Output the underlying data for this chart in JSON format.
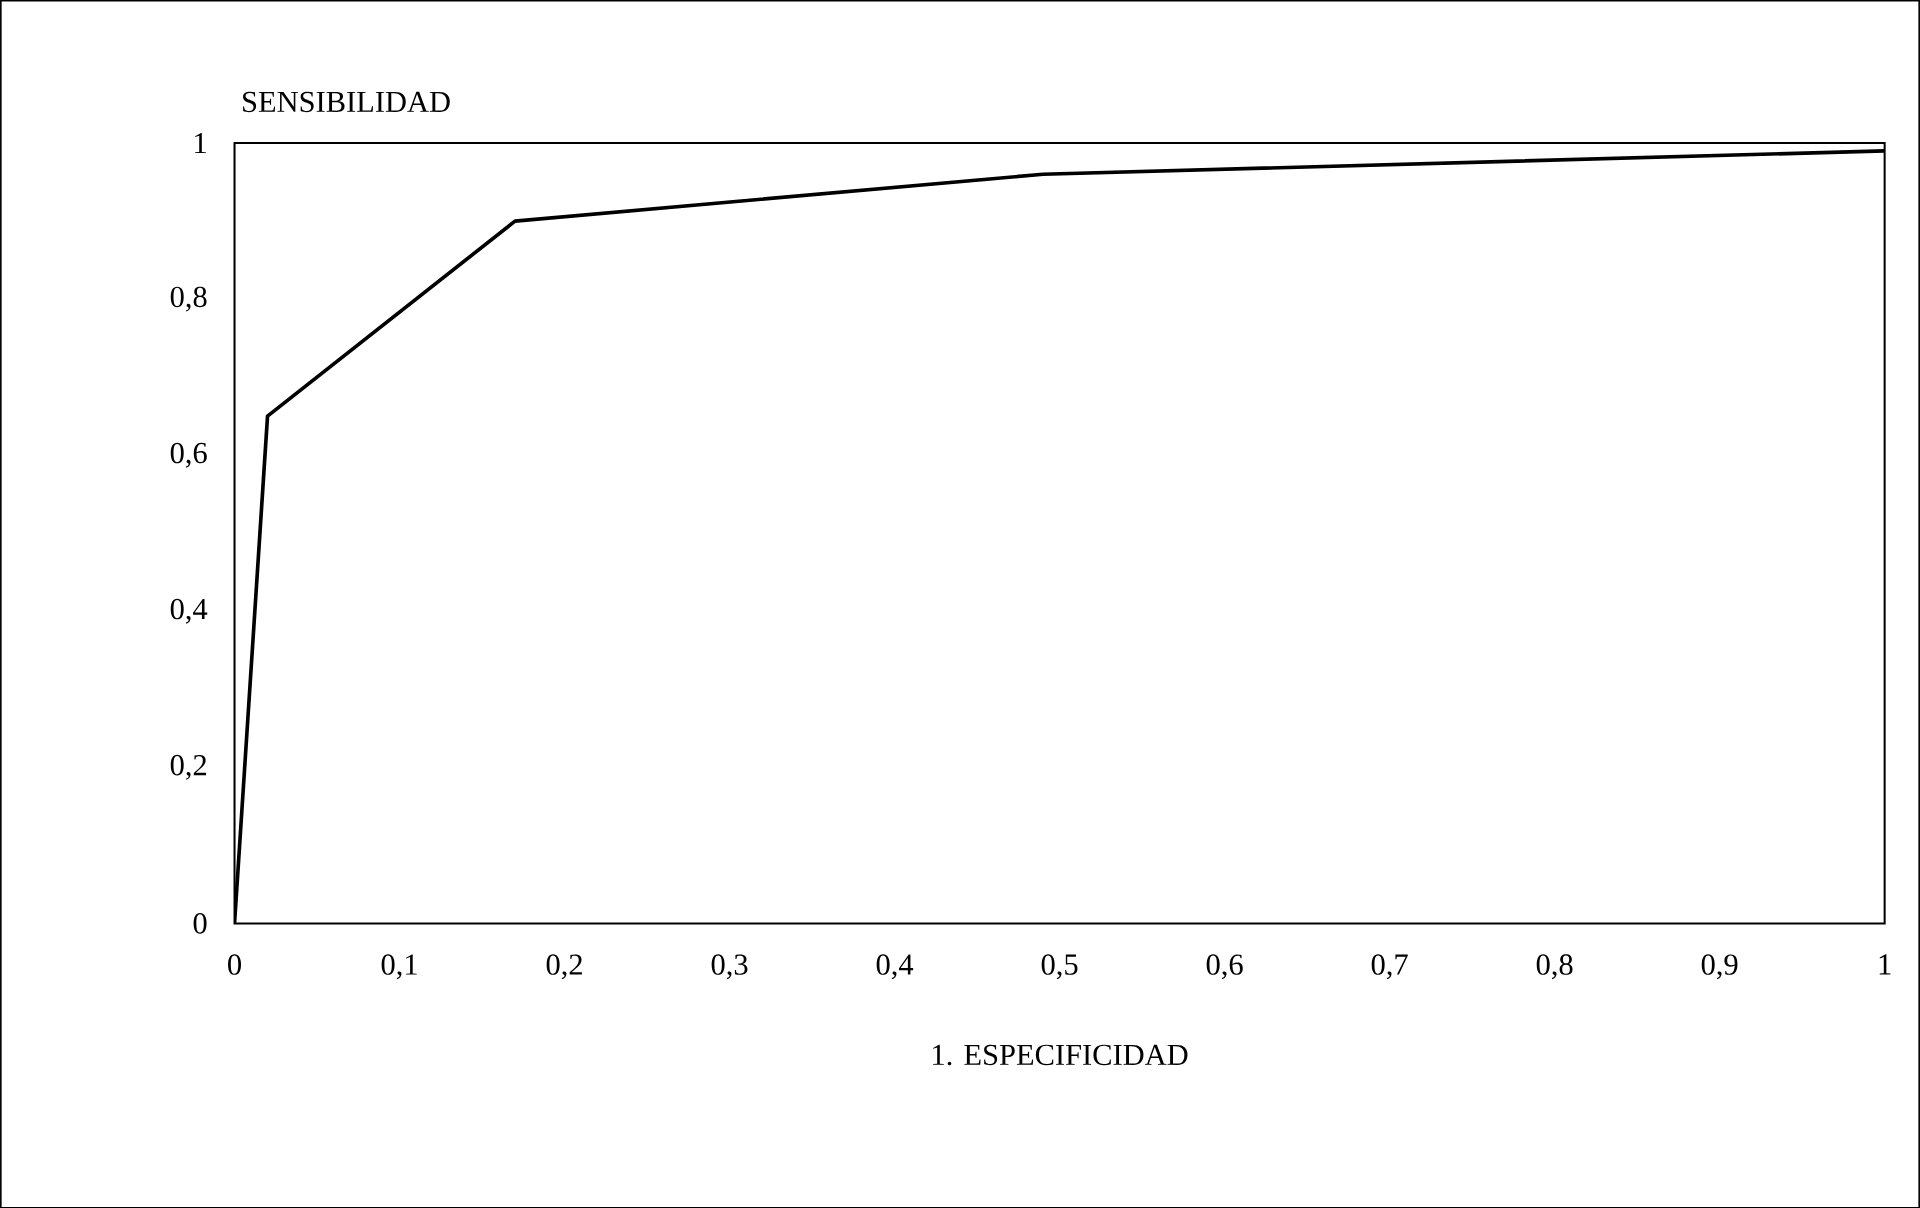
{
  "chart_data": {
    "type": "line",
    "xlabel": "1. ESPECIFICIDAD",
    "ylabel": "SENSIBILIDAD",
    "x": [
      0,
      0.02,
      0.17,
      0.49,
      1
    ],
    "series": [
      {
        "color": "#000000",
        "values": [
          0,
          0.65,
          0.9,
          0.96,
          0.99
        ]
      }
    ],
    "xlim": [
      0,
      1
    ],
    "ylim": [
      0,
      1
    ],
    "xticks": [
      {
        "value": 0,
        "label": "0"
      },
      {
        "value": 0.1,
        "label": "0,1"
      },
      {
        "value": 0.2,
        "label": "0,2"
      },
      {
        "value": 0.3,
        "label": "0,3"
      },
      {
        "value": 0.4,
        "label": "0,4"
      },
      {
        "value": 0.5,
        "label": "0,5"
      },
      {
        "value": 0.6,
        "label": "0,6"
      },
      {
        "value": 0.7,
        "label": "0,7"
      },
      {
        "value": 0.8,
        "label": "0,8"
      },
      {
        "value": 0.9,
        "label": "0,9"
      },
      {
        "value": 1,
        "label": "1"
      }
    ],
    "yticks": [
      {
        "value": 0,
        "label": "0"
      },
      {
        "value": 0.2,
        "label": "0,2"
      },
      {
        "value": 0.4,
        "label": "0,4"
      },
      {
        "value": 0.6,
        "label": "0,6"
      },
      {
        "value": 0.8,
        "label": "0,8"
      },
      {
        "value": 1,
        "label": "1"
      }
    ],
    "grid": false,
    "legend": false,
    "marker": "none",
    "line_style": "solid"
  }
}
